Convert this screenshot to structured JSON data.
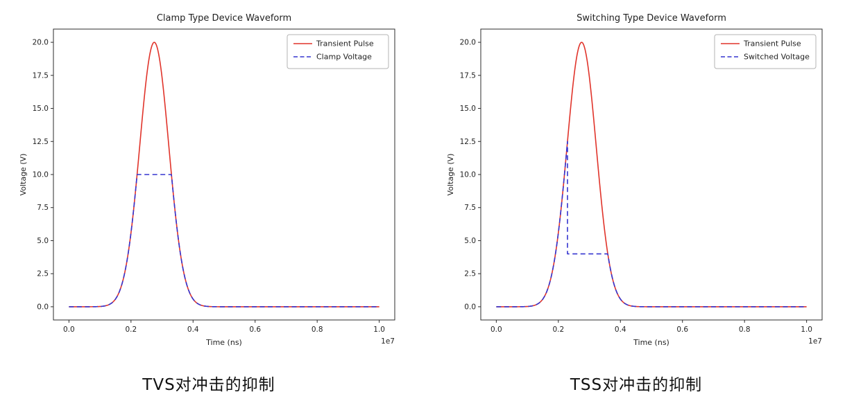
{
  "figures": [
    {
      "caption": "TVS对冲击的抑制"
    },
    {
      "caption": "TSS对冲击的抑制"
    }
  ],
  "chart_data": [
    {
      "type": "line",
      "title": "Clamp Type Device Waveform",
      "xlabel": "Time (ns)",
      "ylabel": "Voltage (V)",
      "x_offset_label": "1e7",
      "xlim": [
        0.0,
        1.0
      ],
      "ylim": [
        0.0,
        20.0
      ],
      "x_ticks": [
        0.0,
        0.2,
        0.4,
        0.6,
        0.8,
        1.0
      ],
      "y_ticks": [
        0.0,
        2.5,
        5.0,
        7.5,
        10.0,
        12.5,
        15.0,
        17.5,
        20.0
      ],
      "grid": false,
      "legend_position": "upper right",
      "series": [
        {
          "name": "Transient Pulse",
          "color": "#e0332a",
          "line_style": "solid",
          "shape": "gaussian",
          "amplitude": 20,
          "center": 0.275,
          "sigma": 0.047
        },
        {
          "name": "Clamp Voltage",
          "color": "#3434cf",
          "line_style": "dashed",
          "shape": "clamped_gaussian",
          "amplitude": 20,
          "center": 0.275,
          "sigma": 0.047,
          "clamp_level": 10
        }
      ]
    },
    {
      "type": "line",
      "title": "Switching Type Device Waveform",
      "xlabel": "Time (ns)",
      "ylabel": "Voltage (V)",
      "x_offset_label": "1e7",
      "xlim": [
        0.0,
        1.0
      ],
      "ylim": [
        0.0,
        20.0
      ],
      "x_ticks": [
        0.0,
        0.2,
        0.4,
        0.6,
        0.8,
        1.0
      ],
      "y_ticks": [
        0.0,
        2.5,
        5.0,
        7.5,
        10.0,
        12.5,
        15.0,
        17.5,
        20.0
      ],
      "grid": false,
      "legend_position": "upper right",
      "series": [
        {
          "name": "Transient Pulse",
          "color": "#e0332a",
          "line_style": "solid",
          "shape": "gaussian",
          "amplitude": 20,
          "center": 0.275,
          "sigma": 0.047
        },
        {
          "name": "Switched Voltage",
          "color": "#3434cf",
          "line_style": "dashed",
          "shape": "switched_gaussian",
          "amplitude": 20,
          "center": 0.275,
          "sigma": 0.047,
          "breakover_voltage": 12.5,
          "holding_voltage": 4
        }
      ]
    }
  ]
}
